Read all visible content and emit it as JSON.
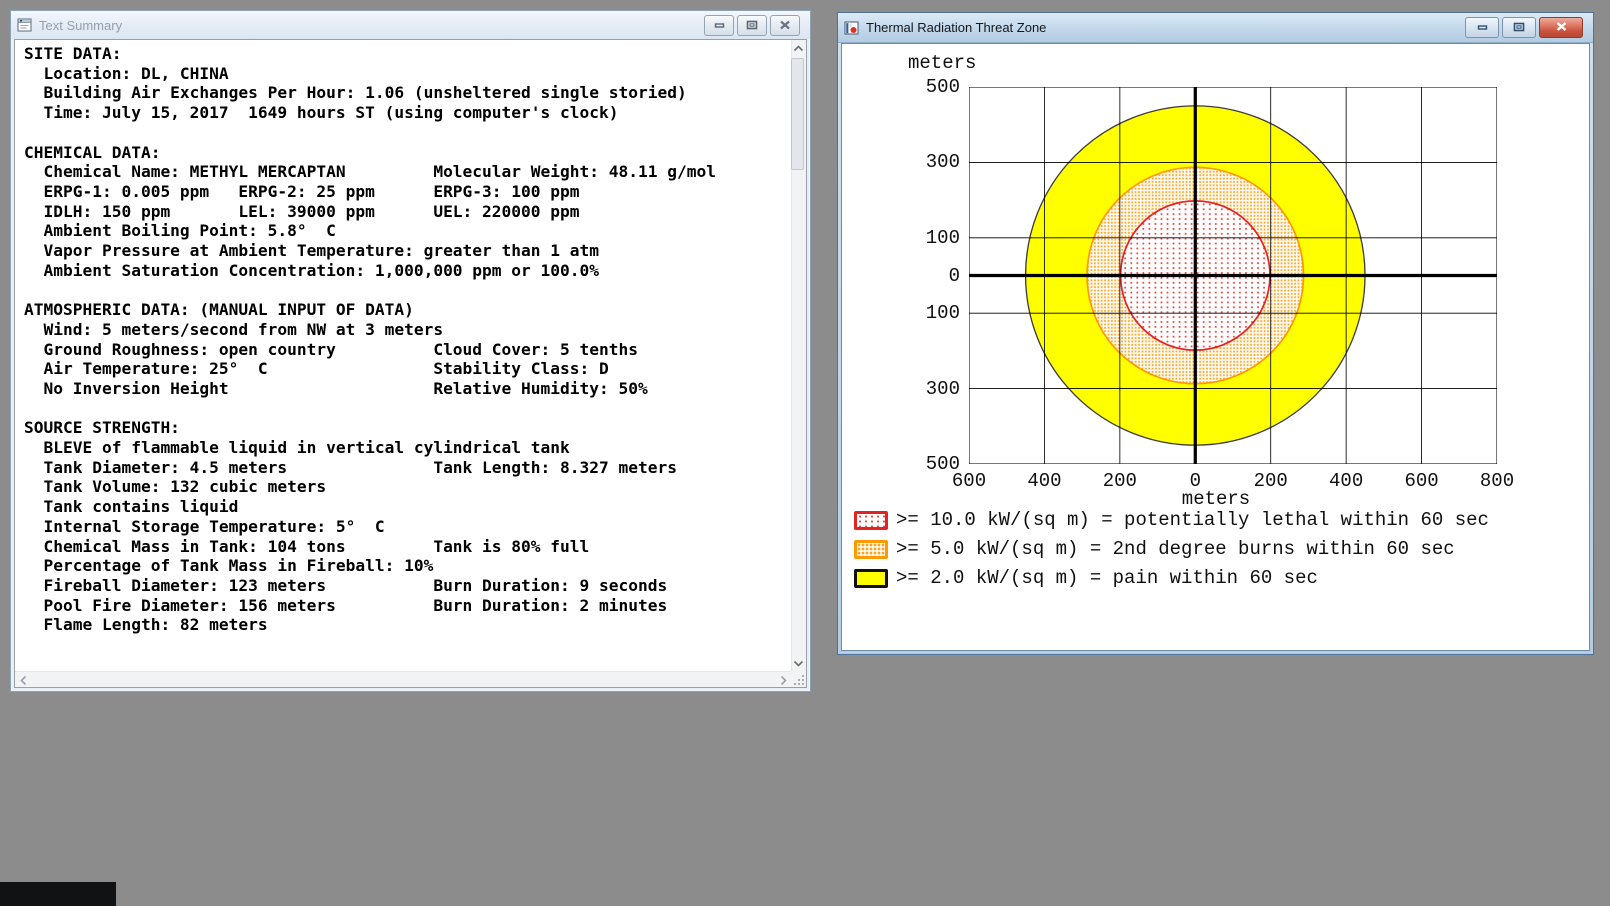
{
  "desktop": {
    "background": "#8c8c8c"
  },
  "text_summary_window": {
    "title": "Text Summary",
    "icon": "document-window-icon",
    "controls": [
      {
        "icon": "minimize-icon"
      },
      {
        "icon": "maximize-icon"
      },
      {
        "icon": "close-icon"
      }
    ],
    "summary_lines": [
      "SITE DATA:",
      "  Location: DL, CHINA",
      "  Building Air Exchanges Per Hour: 1.06 (unsheltered single storied)",
      "  Time: July 15, 2017  1649 hours ST (using computer's clock)",
      "",
      "CHEMICAL DATA:",
      "  Chemical Name: METHYL MERCAPTAN         Molecular Weight: 48.11 g/mol",
      "  ERPG-1: 0.005 ppm   ERPG-2: 25 ppm      ERPG-3: 100 ppm",
      "  IDLH: 150 ppm       LEL: 39000 ppm      UEL: 220000 ppm",
      "  Ambient Boiling Point: 5.8°  C",
      "  Vapor Pressure at Ambient Temperature: greater than 1 atm",
      "  Ambient Saturation Concentration: 1,000,000 ppm or 100.0%",
      "",
      "ATMOSPHERIC DATA: (MANUAL INPUT OF DATA)",
      "  Wind: 5 meters/second from NW at 3 meters",
      "  Ground Roughness: open country          Cloud Cover: 5 tenths",
      "  Air Temperature: 25°  C                 Stability Class: D",
      "  No Inversion Height                     Relative Humidity: 50%",
      "",
      "SOURCE STRENGTH:",
      "  BLEVE of flammable liquid in vertical cylindrical tank",
      "  Tank Diameter: 4.5 meters               Tank Length: 8.327 meters",
      "  Tank Volume: 132 cubic meters",
      "  Tank contains liquid",
      "  Internal Storage Temperature: 5°  C",
      "  Chemical Mass in Tank: 104 tons         Tank is 80% full",
      "  Percentage of Tank Mass in Fireball: 10%",
      "  Fireball Diameter: 123 meters           Burn Duration: 9 seconds",
      "  Pool Fire Diameter: 156 meters          Burn Duration: 2 minutes",
      "  Flame Length: 82 meters"
    ]
  },
  "threat_zone_window": {
    "title": "Thermal Radiation Threat Zone",
    "icon": "threat-zone-chart-icon",
    "controls": [
      {
        "icon": "minimize-icon"
      },
      {
        "icon": "maximize-icon"
      },
      {
        "icon": "close-icon"
      }
    ]
  },
  "chart_data": {
    "type": "area",
    "title": "Thermal Radiation Threat Zone",
    "xlabel": "meters",
    "ylabel": "meters",
    "xlim": [
      -600,
      800
    ],
    "ylim": [
      -500,
      500
    ],
    "grid": true,
    "x_gridlines": [
      -400,
      -200,
      200,
      400,
      600
    ],
    "y_gridlines": [
      -300,
      -100,
      100,
      300
    ],
    "origin_axes": {
      "x": 0,
      "y": 0
    },
    "x_ticks": [
      [
        -600,
        "600"
      ],
      [
        -400,
        "400"
      ],
      [
        -200,
        "200"
      ],
      [
        0,
        "0"
      ],
      [
        200,
        "200"
      ],
      [
        400,
        "400"
      ],
      [
        600,
        "600"
      ],
      [
        800,
        "800"
      ]
    ],
    "y_ticks": [
      [
        500,
        "500"
      ],
      [
        300,
        "300"
      ],
      [
        100,
        "100"
      ],
      [
        0,
        "0"
      ],
      [
        -100,
        "100"
      ],
      [
        -300,
        "300"
      ],
      [
        -500,
        "500"
      ]
    ],
    "zones": [
      {
        "name": "potentially lethal",
        "threshold_kw_sqm": 10.0,
        "radius_m": 198,
        "center": [
          0,
          0
        ],
        "style": "red-dots",
        "stroke": "#e32222"
      },
      {
        "name": "2nd degree burns",
        "threshold_kw_sqm": 5.0,
        "radius_m": 287,
        "center": [
          0,
          0
        ],
        "style": "orange-dots",
        "stroke": "#ff9900"
      },
      {
        "name": "pain",
        "threshold_kw_sqm": 2.0,
        "radius_m": 450,
        "center": [
          0,
          0
        ],
        "style": "yellow-solid",
        "stroke": "#3c3c3c",
        "fill": "#ffff00"
      }
    ],
    "legend_position": "below",
    "legend": [
      {
        "style": "red-dots",
        "label": ">= 10.0 kW/(sq m) = potentially lethal within 60 sec"
      },
      {
        "style": "orange-dots",
        "label": ">= 5.0 kW/(sq m) = 2nd degree burns within 60 sec"
      },
      {
        "style": "yellow-solid",
        "label": ">= 2.0 kW/(sq m) = pain within 60 sec"
      }
    ]
  }
}
